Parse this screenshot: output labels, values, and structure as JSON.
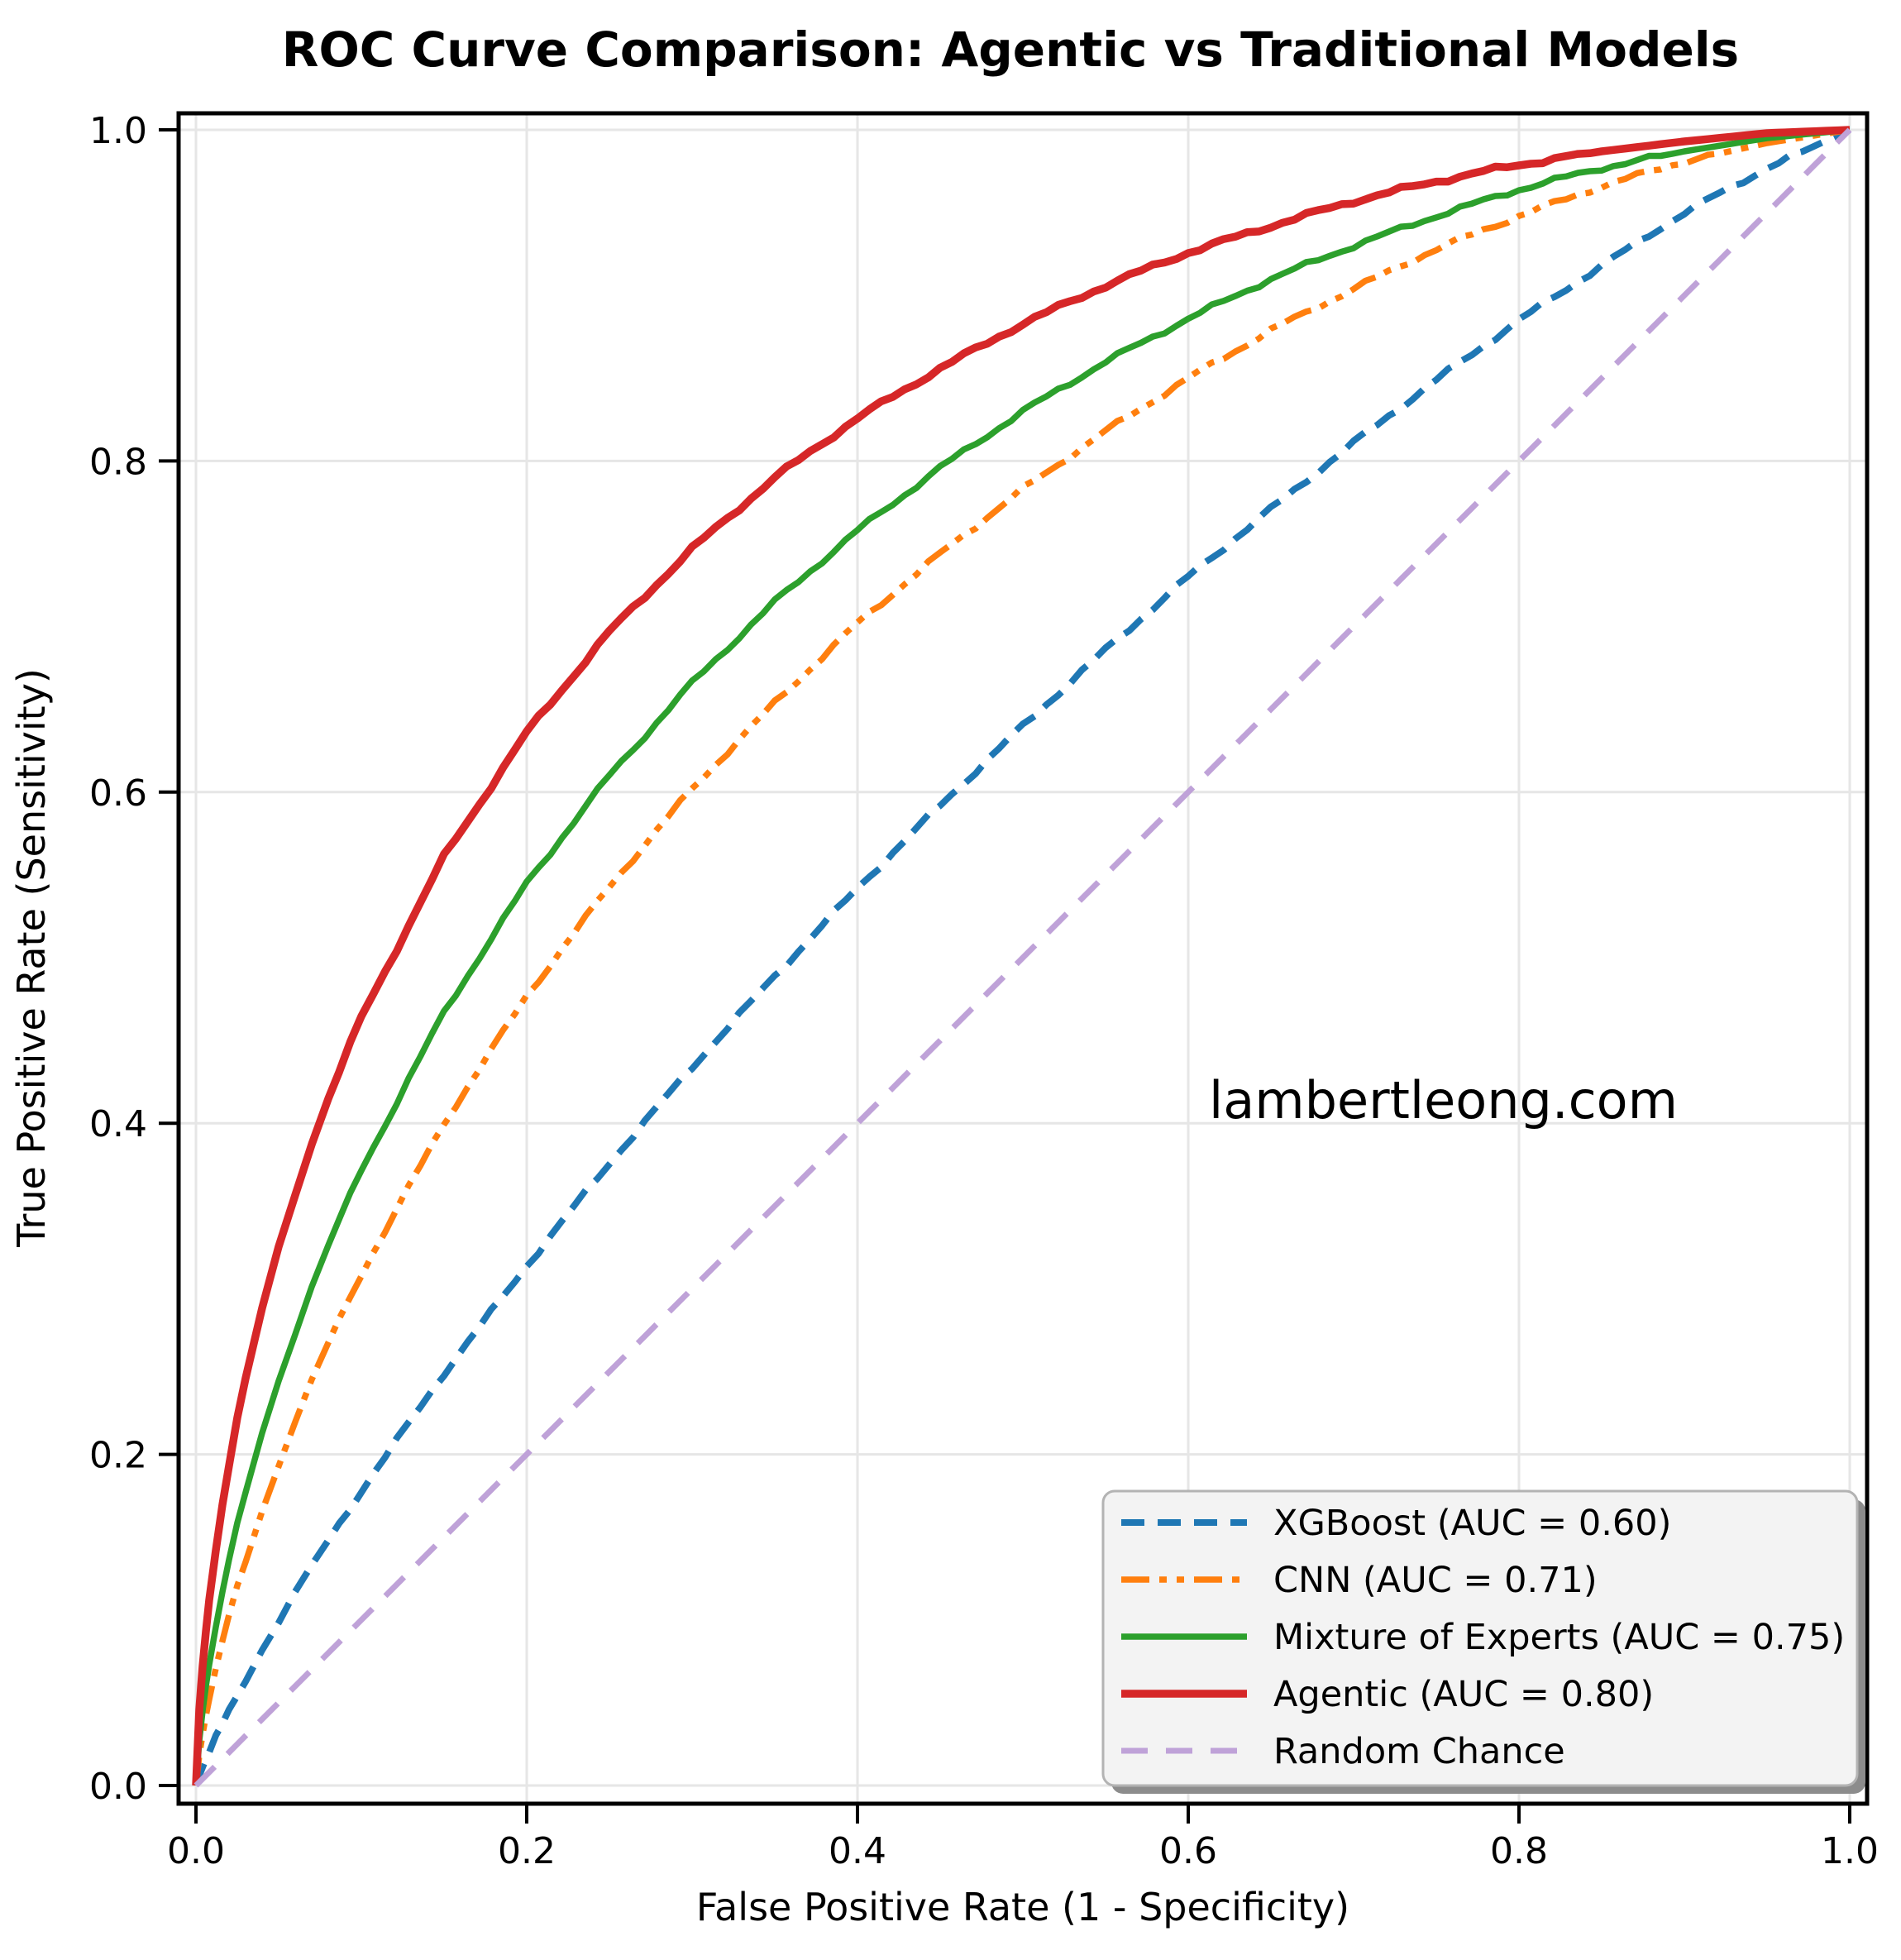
{
  "title": "ROC Curve Comparison: Agentic vs Traditional Models",
  "watermark": {
    "text": "lambertleong.com",
    "color": "#d7d7d7"
  },
  "figure": {
    "background": "#ffffff",
    "grid_color": "#e6e6e6",
    "spine_color": "#000000",
    "tick_color": "#000000"
  },
  "axes": {
    "x": {
      "label": "False Positive Rate (1 - Specificity)",
      "tick_labels": [
        "0.0",
        "0.2",
        "0.4",
        "0.6",
        "0.8",
        "1.0"
      ],
      "tick_values": [
        0,
        0.2,
        0.4,
        0.6,
        0.8,
        1.0
      ]
    },
    "y": {
      "label": "True Positive Rate (Sensitivity)",
      "tick_labels": [
        "0.0",
        "0.2",
        "0.4",
        "0.6",
        "0.8",
        "1.0"
      ],
      "tick_values": [
        0,
        0.2,
        0.4,
        0.6,
        0.8,
        1.0
      ]
    }
  },
  "legend": {
    "position": "lower right",
    "background": "#f3f3f3",
    "border_color": "#b3b3b3",
    "shadow_color": "#8c8c8c",
    "entries": [
      "XGBoost (AUC = 0.60)",
      "CNN (AUC = 0.71)",
      "Mixture of Experts (AUC = 0.75)",
      "Agentic (AUC = 0.80)",
      "Random Chance"
    ]
  },
  "chart_data": {
    "type": "line",
    "title": "ROC Curve Comparison: Agentic vs Traditional Models",
    "xlabel": "False Positive Rate (1 - Specificity)",
    "ylabel": "True Positive Rate (Sensitivity)",
    "xlim": [
      0,
      1
    ],
    "ylim": [
      0,
      1
    ],
    "grid": true,
    "x": [
      0,
      0.002,
      0.004,
      0.006,
      0.008,
      0.012,
      0.016,
      0.02,
      0.025,
      0.03,
      0.04,
      0.05,
      0.06,
      0.07,
      0.08,
      0.1,
      0.15,
      0.2,
      0.25,
      0.3,
      0.35,
      0.4,
      0.45,
      0.5,
      0.55,
      0.6,
      0.65,
      0.7,
      0.75,
      0.8,
      0.85,
      0.9,
      0.95,
      1
    ],
    "series": [
      {
        "name": "XGBoost (AUC = 0.60)",
        "auc": 0.6,
        "color": "#1f77b4",
        "dash": "dashed",
        "width": 8,
        "tpr": [
          0,
          0.006,
          0.011,
          0.016,
          0.02,
          0.029,
          0.037,
          0.045,
          0.055,
          0.064,
          0.082,
          0.099,
          0.116,
          0.132,
          0.148,
          0.178,
          0.249,
          0.314,
          0.376,
          0.434,
          0.489,
          0.542,
          0.592,
          0.64,
          0.686,
          0.73,
          0.771,
          0.811,
          0.849,
          0.885,
          0.918,
          0.95,
          0.977,
          1
        ]
      },
      {
        "name": "CNN (AUC = 0.71)",
        "auc": 0.71,
        "color": "#ff7f0e",
        "dash": "dash-dot-dot",
        "width": 7.5,
        "tpr": [
          0,
          0.018,
          0.031,
          0.042,
          0.052,
          0.07,
          0.087,
          0.102,
          0.12,
          0.136,
          0.166,
          0.194,
          0.22,
          0.244,
          0.267,
          0.309,
          0.4,
          0.477,
          0.543,
          0.602,
          0.654,
          0.702,
          0.744,
          0.783,
          0.818,
          0.85,
          0.879,
          0.904,
          0.928,
          0.948,
          0.966,
          0.981,
          0.992,
          1
        ]
      },
      {
        "name": "Mixture of Experts (AUC = 0.75)",
        "auc": 0.75,
        "color": "#2ca02c",
        "dash": "solid",
        "width": 7.5,
        "tpr": [
          0,
          0.027,
          0.045,
          0.06,
          0.073,
          0.096,
          0.117,
          0.136,
          0.157,
          0.177,
          0.213,
          0.245,
          0.274,
          0.301,
          0.326,
          0.372,
          0.467,
          0.545,
          0.61,
          0.666,
          0.715,
          0.758,
          0.796,
          0.83,
          0.86,
          0.886,
          0.91,
          0.93,
          0.948,
          0.964,
          0.977,
          0.987,
          0.995,
          1
        ]
      },
      {
        "name": "Agentic (AUC = 0.80)",
        "auc": 0.8,
        "color": "#d62728",
        "dash": "solid",
        "width": 9.5,
        "tpr": [
          0,
          0.046,
          0.072,
          0.093,
          0.112,
          0.143,
          0.17,
          0.194,
          0.221,
          0.245,
          0.288,
          0.325,
          0.358,
          0.388,
          0.415,
          0.464,
          0.561,
          0.636,
          0.697,
          0.747,
          0.79,
          0.826,
          0.856,
          0.883,
          0.906,
          0.926,
          0.942,
          0.957,
          0.969,
          0.979,
          0.987,
          0.993,
          0.998,
          1
        ]
      },
      {
        "name": "Random Chance",
        "color": "#bfa2d8",
        "dash": "long-dashed",
        "width": 7,
        "tpr": [
          0,
          0.002,
          0.004,
          0.006,
          0.008,
          0.012,
          0.016,
          0.02,
          0.025,
          0.03,
          0.04,
          0.05,
          0.06,
          0.07,
          0.08,
          0.1,
          0.15,
          0.2,
          0.25,
          0.3,
          0.35,
          0.4,
          0.45,
          0.5,
          0.55,
          0.6,
          0.65,
          0.7,
          0.75,
          0.8,
          0.85,
          0.9,
          0.95,
          1
        ]
      }
    ]
  }
}
